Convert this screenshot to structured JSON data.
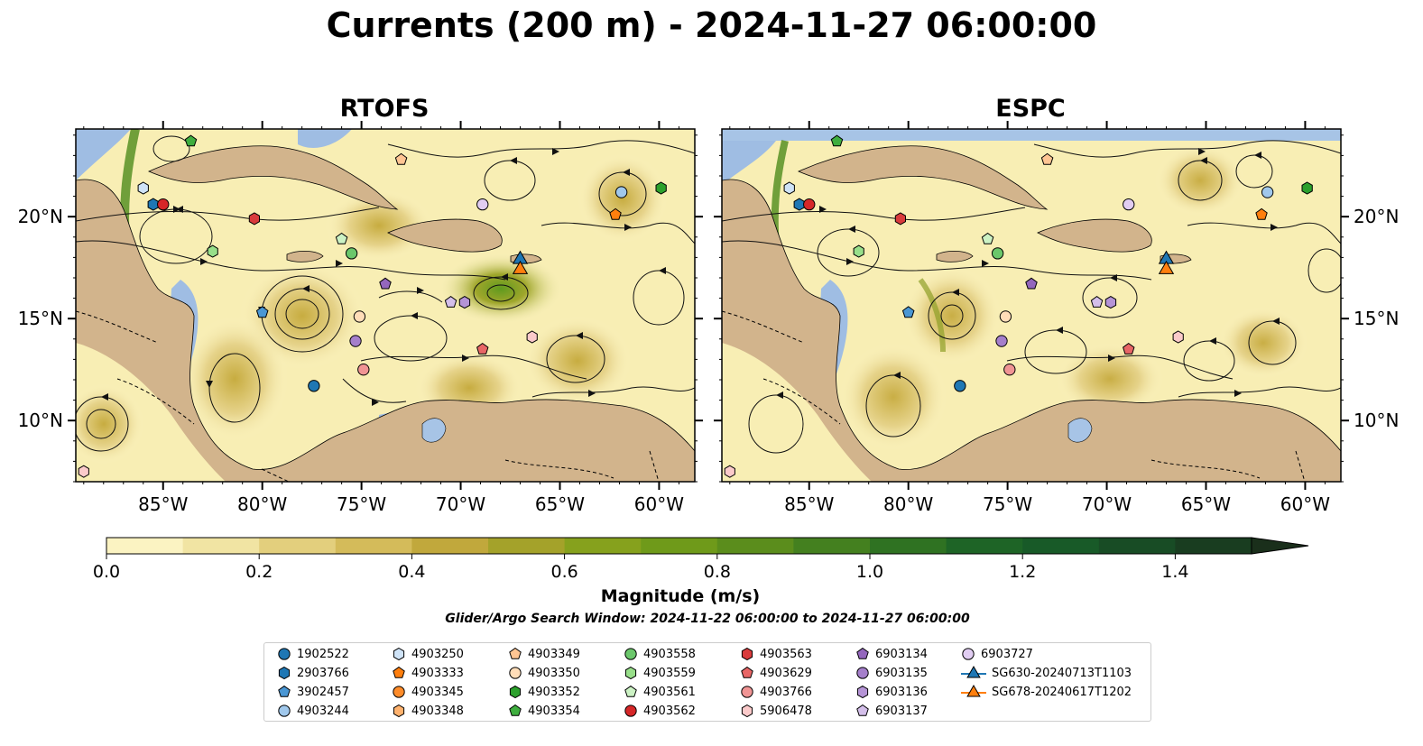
{
  "title": "Currents (200 m) - 2024-11-27 06:00:00",
  "panels": [
    {
      "title": "RTOFS"
    },
    {
      "title": "ESPC"
    }
  ],
  "map": {
    "lon_range": [
      -89.4,
      -58.2
    ],
    "lat_range": [
      7.0,
      24.3
    ],
    "lon_ticks": [
      "85°W",
      "80°W",
      "75°W",
      "70°W",
      "65°W",
      "60°W"
    ],
    "lat_ticks": [
      "10°N",
      "15°N",
      "20°N"
    ],
    "colors": {
      "land": "#d2b48c",
      "ocean_shallow": "#a7c4e6",
      "low_current": "#fbf3c2",
      "high_current": "#2e7a1f"
    }
  },
  "colorbar": {
    "label": "Magnitude (m/s)",
    "ticks": [
      "0.0",
      "0.2",
      "0.4",
      "0.6",
      "0.8",
      "1.0",
      "1.2",
      "1.4"
    ],
    "range": [
      0.0,
      1.5
    ],
    "extend": "max",
    "colors": [
      "#fbf3c2",
      "#f1e4a3",
      "#e3cf7d",
      "#d4bb5a",
      "#c1a83c",
      "#a4a22a",
      "#86a11d",
      "#6f9a1a",
      "#5b8d1c",
      "#44801f",
      "#2f7222",
      "#1e6426",
      "#185a28",
      "#184c25",
      "#193d20",
      "#1a2f1b"
    ]
  },
  "search_window": "Glider/Argo Search Window: 2024-11-22 06:00:00 to 2024-11-27 06:00:00",
  "legend": [
    {
      "label": "1902522",
      "marker": "circle",
      "color": "#1f77b4"
    },
    {
      "label": "2903766",
      "marker": "hexagon",
      "color": "#1f77b4"
    },
    {
      "label": "3902457",
      "marker": "pentagon",
      "color": "#4a97d4"
    },
    {
      "label": "4903244",
      "marker": "circle",
      "color": "#a0c8ec"
    },
    {
      "label": "4903250",
      "marker": "hexagon",
      "color": "#cfe3f7"
    },
    {
      "label": "4903333",
      "marker": "pentagon",
      "color": "#ff7f0e"
    },
    {
      "label": "4903345",
      "marker": "circle",
      "color": "#ff8c2a"
    },
    {
      "label": "4903348",
      "marker": "hexagon",
      "color": "#ffb26e"
    },
    {
      "label": "4903349",
      "marker": "pentagon",
      "color": "#ffc593"
    },
    {
      "label": "4903350",
      "marker": "circle",
      "color": "#ffddb8"
    },
    {
      "label": "4903352",
      "marker": "hexagon",
      "color": "#2ca02c"
    },
    {
      "label": "4903354",
      "marker": "pentagon",
      "color": "#3fae3f"
    },
    {
      "label": "4903558",
      "marker": "circle",
      "color": "#6bc76b"
    },
    {
      "label": "4903559",
      "marker": "hexagon",
      "color": "#98df8a"
    },
    {
      "label": "4903561",
      "marker": "pentagon",
      "color": "#ccf2c4"
    },
    {
      "label": "4903562",
      "marker": "circle",
      "color": "#d62728"
    },
    {
      "label": "4903563",
      "marker": "hexagon",
      "color": "#d93b3c"
    },
    {
      "label": "4903629",
      "marker": "pentagon",
      "color": "#e86666"
    },
    {
      "label": "4903766",
      "marker": "circle",
      "color": "#f09494"
    },
    {
      "label": "5906478",
      "marker": "hexagon",
      "color": "#fbcaca"
    },
    {
      "label": "6903134",
      "marker": "pentagon",
      "color": "#9467bd"
    },
    {
      "label": "6903135",
      "marker": "circle",
      "color": "#a57fcb"
    },
    {
      "label": "6903136",
      "marker": "hexagon",
      "color": "#b594d6"
    },
    {
      "label": "6903137",
      "marker": "pentagon",
      "color": "#d4bfea"
    },
    {
      "label": "6903727",
      "marker": "circle",
      "color": "#e1cdf2"
    },
    {
      "label": "SG630-20240713T1103",
      "marker": "triangle",
      "color": "#1f77b4"
    },
    {
      "label": "SG678-20240617T1202",
      "marker": "triangle",
      "color": "#ff7f0e"
    }
  ],
  "floats": [
    {
      "id": "1902522",
      "rtofs": [
        -77.4,
        11.7
      ],
      "espc": [
        -77.4,
        11.7
      ]
    },
    {
      "id": "2903766",
      "rtofs": [
        -85.5,
        20.6
      ],
      "espc": [
        -85.5,
        20.6
      ]
    },
    {
      "id": "3902457",
      "rtofs": [
        -80.0,
        15.3
      ],
      "espc": [
        -80.0,
        15.3
      ]
    },
    {
      "id": "4903244",
      "rtofs": [
        -61.9,
        21.2
      ],
      "espc": [
        -61.9,
        21.2
      ]
    },
    {
      "id": "4903250",
      "rtofs": [
        -86.0,
        21.4
      ],
      "espc": [
        -86.0,
        21.4
      ]
    },
    {
      "id": "4903333",
      "rtofs": [
        -62.2,
        20.1
      ],
      "espc": [
        -62.2,
        20.1
      ]
    },
    {
      "id": "4903349",
      "rtofs": [
        -73.0,
        22.8
      ],
      "espc": [
        -73.0,
        22.8
      ]
    },
    {
      "id": "4903350",
      "rtofs": [
        -75.1,
        15.1
      ],
      "espc": [
        -75.1,
        15.1
      ]
    },
    {
      "id": "4903352",
      "rtofs": [
        -59.9,
        21.4
      ],
      "espc": [
        -59.9,
        21.4
      ]
    },
    {
      "id": "4903354",
      "rtofs": [
        -83.6,
        23.7
      ],
      "espc": [
        -83.6,
        23.7
      ]
    },
    {
      "id": "4903558",
      "rtofs": [
        -75.5,
        18.2
      ],
      "espc": [
        -75.5,
        18.2
      ]
    },
    {
      "id": "4903559",
      "rtofs": [
        -82.5,
        18.3
      ],
      "espc": [
        -82.5,
        18.3
      ]
    },
    {
      "id": "4903561",
      "rtofs": [
        -76.0,
        18.9
      ],
      "espc": [
        -76.0,
        18.9
      ]
    },
    {
      "id": "4903562",
      "rtofs": [
        -85.0,
        20.6
      ],
      "espc": [
        -85.0,
        20.6
      ]
    },
    {
      "id": "4903563",
      "rtofs": [
        -80.4,
        19.9
      ],
      "espc": [
        -80.4,
        19.9
      ]
    },
    {
      "id": "4903629",
      "rtofs": [
        -68.9,
        13.5
      ],
      "espc": [
        -68.9,
        13.5
      ]
    },
    {
      "id": "4903766",
      "rtofs": [
        -74.9,
        12.5
      ],
      "espc": [
        -74.9,
        12.5
      ]
    },
    {
      "id": "5906478",
      "rtofs": [
        -89.0,
        7.5
      ],
      "espc": [
        -89.0,
        7.5
      ]
    },
    {
      "id": "5906478",
      "rtofs": [
        -66.4,
        14.1
      ],
      "espc": [
        -66.4,
        14.1
      ]
    },
    {
      "id": "6903134",
      "rtofs": [
        -73.8,
        16.7
      ],
      "espc": [
        -73.8,
        16.7
      ]
    },
    {
      "id": "6903135",
      "rtofs": [
        -75.3,
        13.9
      ],
      "espc": [
        -75.3,
        13.9
      ]
    },
    {
      "id": "6903136",
      "rtofs": [
        -69.8,
        15.8
      ],
      "espc": [
        -69.8,
        15.8
      ]
    },
    {
      "id": "6903137",
      "rtofs": [
        -70.5,
        15.8
      ],
      "espc": [
        -70.5,
        15.8
      ]
    },
    {
      "id": "6903727",
      "rtofs": [
        -68.9,
        20.6
      ],
      "espc": [
        -68.9,
        20.6
      ]
    },
    {
      "id": "SG630-20240713T1103",
      "rtofs": [
        -67.0,
        17.9
      ],
      "espc": [
        -67.0,
        17.9
      ]
    },
    {
      "id": "SG678-20240617T1202",
      "rtofs": [
        -67.0,
        17.4
      ],
      "espc": [
        -67.0,
        17.4
      ]
    }
  ]
}
